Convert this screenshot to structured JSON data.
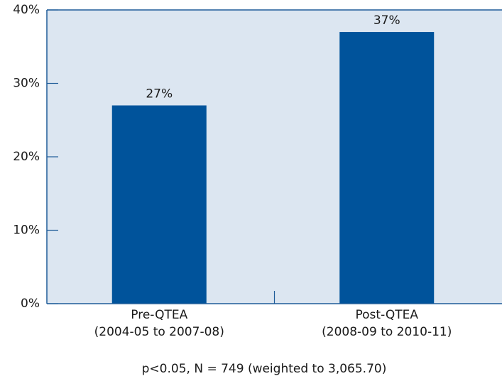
{
  "chart_data": {
    "type": "bar",
    "categories": [
      [
        "Pre-QTEA",
        "(2004-05 to 2007-08)"
      ],
      [
        "Post-QTEA",
        "(2008-09 to 2010-11)"
      ]
    ],
    "values": [
      27,
      37
    ],
    "value_labels": [
      "27%",
      "37%"
    ],
    "color": "#00539b",
    "ylim": [
      0,
      40
    ],
    "yticks": [
      {
        "value": 0,
        "label": "0%"
      },
      {
        "value": 10,
        "label": "10%"
      },
      {
        "value": 20,
        "label": "20%"
      },
      {
        "value": 30,
        "label": "30%"
      },
      {
        "value": 40,
        "label": "40%"
      }
    ],
    "note": "p<0.05, N = 749 (weighted to 3,065.70)",
    "background": "#dce6f1",
    "axis_color": "#1f5c99"
  }
}
